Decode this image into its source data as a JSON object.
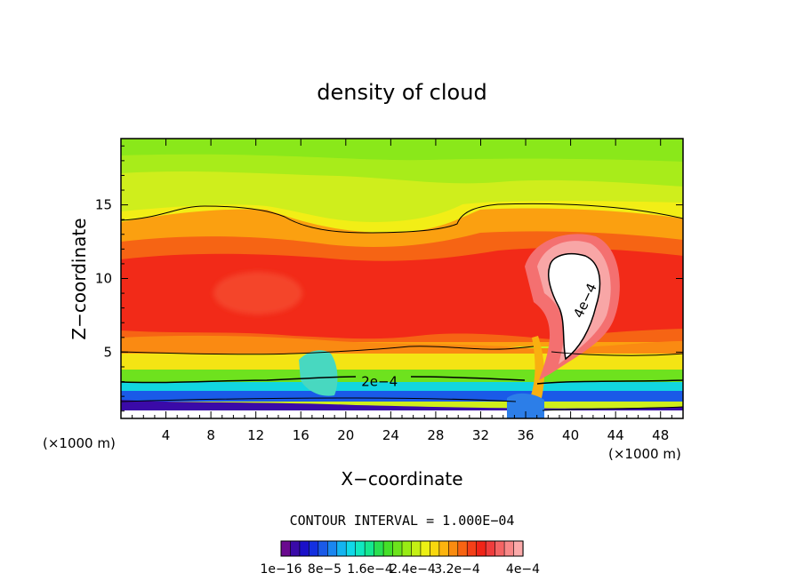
{
  "chart_data": {
    "type": "heatmap",
    "title": "density of cloud",
    "xlabel": "X−coordinate",
    "ylabel": "Z−coordinate",
    "x_unit_left": "(×1000 m)",
    "x_unit_right": "(×1000 m)",
    "xlim": [
      0,
      50
    ],
    "ylim": [
      0.5,
      19.5
    ],
    "x_ticks": [
      4,
      8,
      12,
      16,
      20,
      24,
      28,
      32,
      36,
      40,
      44,
      48
    ],
    "y_ticks": [
      5,
      10,
      15
    ],
    "contour_interval_text": "CONTOUR INTERVAL = 1.000E−04",
    "contour_labels": [
      {
        "text": "2e−4",
        "x": 23,
        "z": 3.0
      },
      {
        "text": "4e−4",
        "x": 41.3,
        "z": 8.5
      }
    ],
    "colorbar": {
      "colors": [
        "#6a0a8f",
        "#3a0aa8",
        "#1a10c8",
        "#1430e0",
        "#1a5ae8",
        "#1a86f0",
        "#14b4f0",
        "#10d8e8",
        "#10e8c0",
        "#14e890",
        "#28e050",
        "#44e028",
        "#6ce41c",
        "#98ec14",
        "#c4f014",
        "#ecf014",
        "#f8d80e",
        "#fcb40e",
        "#fa8c10",
        "#f86412",
        "#f44018",
        "#f02418",
        "#f03c3c",
        "#f46464",
        "#f88888",
        "#fcaaaa"
      ],
      "tick_labels": [
        "1e−16",
        "8e−5",
        "1.6e−4",
        "2.4e−4",
        "3.2e−4",
        "4e−4"
      ]
    }
  }
}
